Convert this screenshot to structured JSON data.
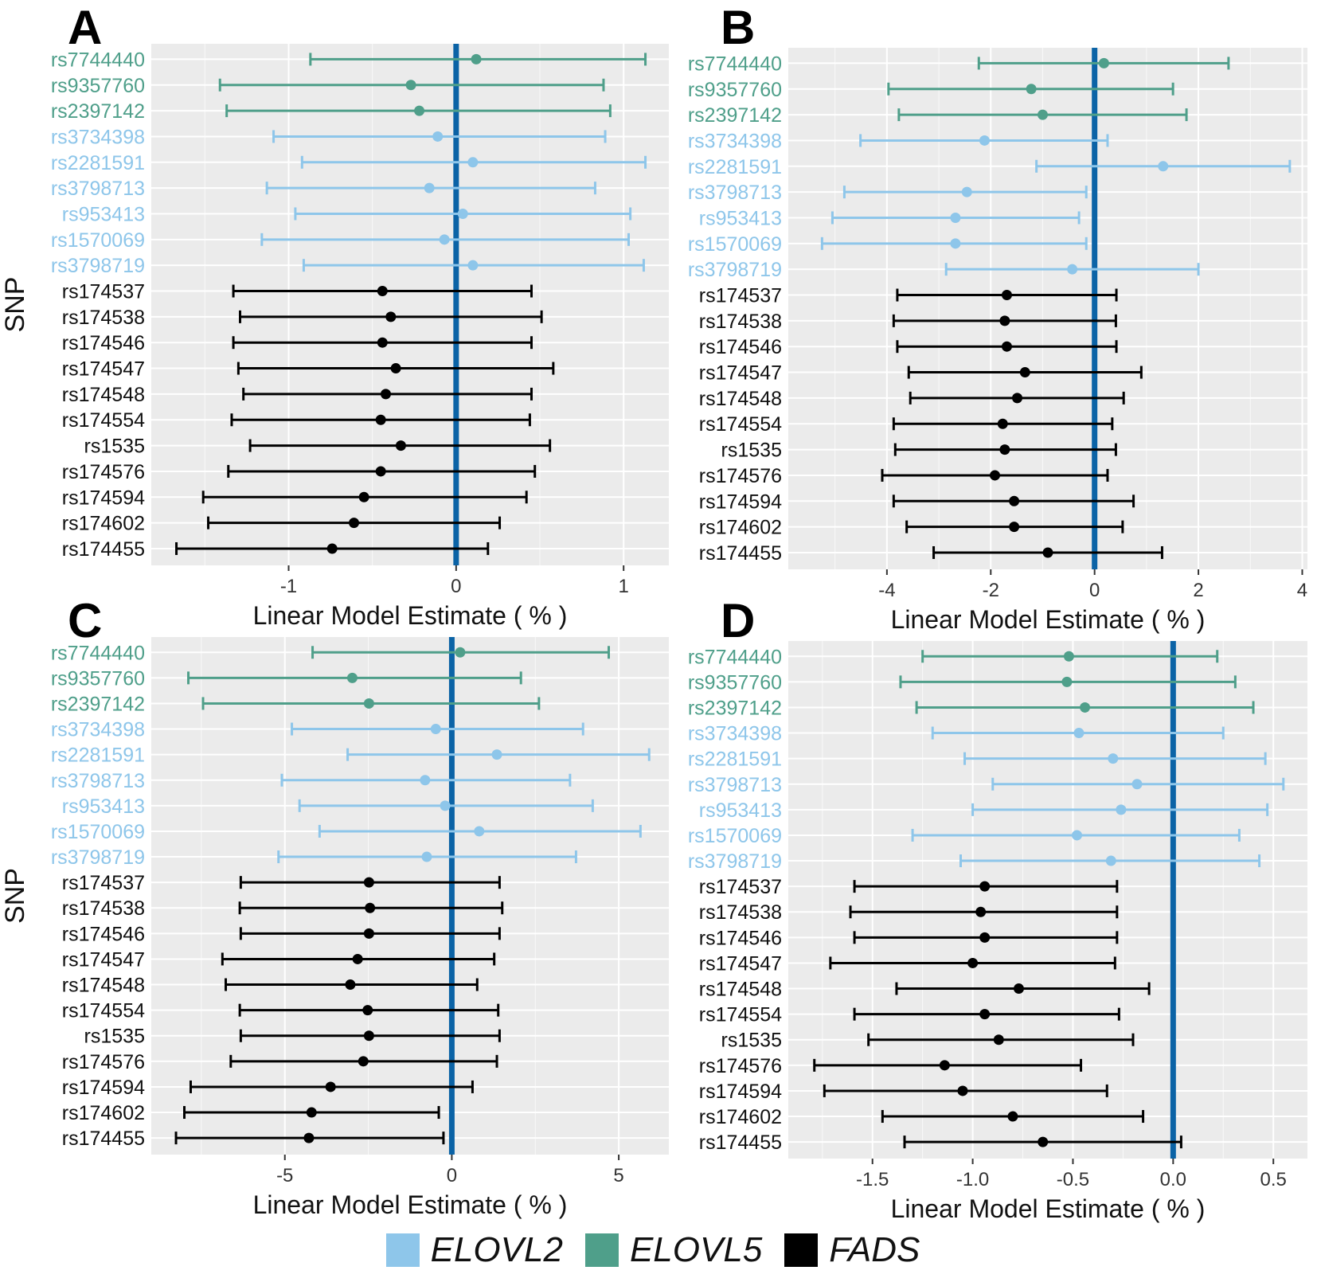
{
  "colors": {
    "ELOVL2": "#8ec6ea",
    "ELOVL5": "#4f9f8a",
    "FADS": "#000000",
    "zero_line": "#0b63a6",
    "panel_bg": "#ebebeb",
    "grid": "#ffffff",
    "text_dark": "#222222"
  },
  "legend": [
    {
      "label": "ELOVL2",
      "color": "#8ec6ea"
    },
    {
      "label": "ELOVL5",
      "color": "#4f9f8a"
    },
    {
      "label": "FADS",
      "color": "#000000"
    }
  ],
  "snps": [
    "rs7744440",
    "rs9357760",
    "rs2397142",
    "rs3734398",
    "rs2281591",
    "rs3798713",
    "rs953413",
    "rs1570069",
    "rs3798719",
    "rs174537",
    "rs174538",
    "rs174546",
    "rs174547",
    "rs174548",
    "rs174554",
    "rs1535",
    "rs174576",
    "rs174594",
    "rs174602",
    "rs174455"
  ],
  "groups": [
    "ELOVL5",
    "ELOVL5",
    "ELOVL5",
    "ELOVL2",
    "ELOVL2",
    "ELOVL2",
    "ELOVL2",
    "ELOVL2",
    "ELOVL2",
    "FADS",
    "FADS",
    "FADS",
    "FADS",
    "FADS",
    "FADS",
    "FADS",
    "FADS",
    "FADS",
    "FADS",
    "FADS"
  ],
  "chart_data": [
    {
      "panel": "A",
      "type": "forest",
      "ylabel": "SNP",
      "xlabel": "Linear Model Estimate ( % )",
      "xlim": [
        -1.82,
        1.27
      ],
      "xticks": [
        -1,
        0,
        1
      ],
      "xtick_labels": [
        "-1",
        "0",
        "1"
      ],
      "estimates": [
        0.12,
        -0.27,
        -0.22,
        -0.11,
        0.1,
        -0.16,
        0.04,
        -0.07,
        0.1,
        -0.44,
        -0.39,
        -0.44,
        -0.36,
        -0.42,
        -0.45,
        -0.33,
        -0.45,
        -0.55,
        -0.61,
        -0.74
      ],
      "lower": [
        -0.87,
        -1.41,
        -1.37,
        -1.09,
        -0.92,
        -1.13,
        -0.96,
        -1.16,
        -0.91,
        -1.33,
        -1.29,
        -1.33,
        -1.3,
        -1.27,
        -1.34,
        -1.23,
        -1.36,
        -1.51,
        -1.48,
        -1.67
      ],
      "upper": [
        1.13,
        0.88,
        0.92,
        0.89,
        1.13,
        0.83,
        1.04,
        1.03,
        1.12,
        0.45,
        0.51,
        0.45,
        0.58,
        0.45,
        0.44,
        0.56,
        0.47,
        0.42,
        0.26,
        0.19
      ]
    },
    {
      "panel": "B",
      "type": "forest",
      "ylabel": "",
      "xlabel": "Linear Model Estimate ( % )",
      "xlim": [
        -5.9,
        4.1
      ],
      "xticks": [
        -4,
        -2,
        0,
        2,
        4
      ],
      "xtick_labels": [
        "-4",
        "-2",
        "0",
        "2",
        "4"
      ],
      "estimates": [
        0.18,
        -1.22,
        -1.0,
        -2.12,
        1.32,
        -2.46,
        -2.68,
        -2.68,
        -0.43,
        -1.69,
        -1.73,
        -1.69,
        -1.34,
        -1.49,
        -1.77,
        -1.73,
        -1.92,
        -1.55,
        -1.55,
        -0.9
      ],
      "lower": [
        -2.23,
        -3.97,
        -3.77,
        -4.51,
        -1.12,
        -4.82,
        -5.05,
        -5.25,
        -2.86,
        -3.8,
        -3.87,
        -3.8,
        -3.58,
        -3.55,
        -3.87,
        -3.84,
        -4.09,
        -3.87,
        -3.62,
        -3.1
      ],
      "upper": [
        2.58,
        1.51,
        1.77,
        0.25,
        3.76,
        -0.16,
        -0.3,
        -0.16,
        2.0,
        0.42,
        0.41,
        0.42,
        0.9,
        0.56,
        0.34,
        0.41,
        0.25,
        0.75,
        0.54,
        1.3
      ]
    },
    {
      "panel": "C",
      "type": "forest",
      "ylabel": "SNP",
      "xlabel": "Linear Model Estimate ( % )",
      "xlim": [
        -9.0,
        6.5
      ],
      "xticks": [
        -5,
        0,
        5
      ],
      "xtick_labels": [
        "-5",
        "0",
        "5"
      ],
      "estimates": [
        0.25,
        -2.98,
        -2.48,
        -0.48,
        1.35,
        -0.8,
        -0.2,
        0.82,
        -0.75,
        -2.48,
        -2.45,
        -2.48,
        -2.82,
        -3.04,
        -2.52,
        -2.48,
        -2.65,
        -3.63,
        -4.2,
        -4.28
      ],
      "lower": [
        -4.17,
        -7.89,
        -7.45,
        -4.79,
        -3.12,
        -5.09,
        -4.56,
        -3.96,
        -5.19,
        -6.32,
        -6.35,
        -6.32,
        -6.87,
        -6.77,
        -6.35,
        -6.32,
        -6.62,
        -7.82,
        -8.01,
        -8.26
      ],
      "upper": [
        4.7,
        2.07,
        2.61,
        3.93,
        5.91,
        3.54,
        4.22,
        5.65,
        3.72,
        1.43,
        1.51,
        1.43,
        1.27,
        0.76,
        1.39,
        1.43,
        1.35,
        0.62,
        -0.39,
        -0.25
      ]
    },
    {
      "panel": "D",
      "type": "forest",
      "ylabel": "",
      "xlabel": "Linear Model Estimate ( % )",
      "xlim": [
        -1.92,
        0.67
      ],
      "xticks": [
        -1.5,
        -1.0,
        -0.5,
        0.0,
        0.5
      ],
      "xtick_labels": [
        "-1.5",
        "-1.0",
        "-0.5",
        "0.0",
        "0.5"
      ],
      "estimates": [
        -0.52,
        -0.53,
        -0.44,
        -0.47,
        -0.3,
        -0.18,
        -0.26,
        -0.48,
        -0.31,
        -0.94,
        -0.96,
        -0.94,
        -1.0,
        -0.77,
        -0.94,
        -0.87,
        -1.14,
        -1.05,
        -0.8,
        -0.65
      ],
      "lower": [
        -1.25,
        -1.36,
        -1.28,
        -1.2,
        -1.04,
        -0.9,
        -1.0,
        -1.3,
        -1.06,
        -1.59,
        -1.61,
        -1.59,
        -1.71,
        -1.38,
        -1.59,
        -1.52,
        -1.79,
        -1.74,
        -1.45,
        -1.34
      ],
      "upper": [
        0.22,
        0.31,
        0.4,
        0.25,
        0.46,
        0.55,
        0.47,
        0.33,
        0.43,
        -0.28,
        -0.28,
        -0.28,
        -0.29,
        -0.12,
        -0.27,
        -0.2,
        -0.46,
        -0.33,
        -0.15,
        0.04
      ]
    }
  ]
}
